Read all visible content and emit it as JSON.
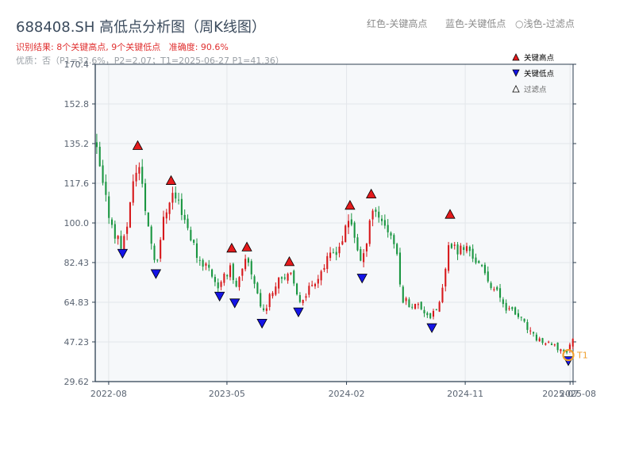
{
  "header": {
    "title": "688408.SH 高低点分析图（周K线图）",
    "result_text": "识别结果: 8个关键高点, 9个关键低点",
    "accuracy_text": "准确度: 90.6%",
    "quality_text": "优质：否（P1=32.6%，P2=2.07；T1=2025-06-27 P1=41.36）",
    "legend_top": {
      "red": "红色-关键高点",
      "blue": "蓝色-关键低点",
      "light": "浅色-过滤点"
    }
  },
  "chart_data": {
    "type": "candlestick",
    "title": "688408.SH 高低点分析图（周K线图）",
    "xlabel": "",
    "ylabel": "",
    "ylim": [
      29.62,
      170.4
    ],
    "xlim": [
      "2022-07-01",
      "2025-07-08"
    ],
    "y_ticks": [
      "29.62",
      "47.23",
      "64.83",
      "82.43",
      "100.0",
      "117.6",
      "135.2",
      "152.8",
      "170.4"
    ],
    "x_ticks": [
      "2022-08",
      "2023-05",
      "2024-02",
      "2024-11",
      "2025-07",
      "2025-08"
    ],
    "grid": true,
    "colors": {
      "up": "#d7191c",
      "down": "#1a9641",
      "key_high": "#e41a1c",
      "key_low": "#1414e6",
      "t1_marker": "#f0a030",
      "plot_bg": "#f6f8fa",
      "axis": "#2c3e50"
    },
    "legend": {
      "position": "top-right",
      "items": [
        {
          "marker": "red-triangle-up",
          "label": "关键高点"
        },
        {
          "marker": "blue-triangle-down",
          "label": "关键低点"
        },
        {
          "marker": "white-triangle-up",
          "label": "过滤点"
        }
      ]
    },
    "key_highs": [
      {
        "date": "2022-10-07",
        "price": 131.5
      },
      {
        "date": "2022-12-23",
        "price": 116.0
      },
      {
        "date": "2023-05-12",
        "price": 86.0
      },
      {
        "date": "2023-06-16",
        "price": 86.5
      },
      {
        "date": "2023-09-22",
        "price": 80.0
      },
      {
        "date": "2024-02-09",
        "price": 105.0
      },
      {
        "date": "2024-03-29",
        "price": 110.0
      },
      {
        "date": "2024-09-27",
        "price": 101.0
      }
    ],
    "key_lows": [
      {
        "date": "2022-09-02",
        "price": 89.0
      },
      {
        "date": "2022-11-18",
        "price": 80.0
      },
      {
        "date": "2023-04-14",
        "price": 70.0
      },
      {
        "date": "2023-05-19",
        "price": 67.0
      },
      {
        "date": "2023-07-21",
        "price": 58.0
      },
      {
        "date": "2023-10-13",
        "price": 63.0
      },
      {
        "date": "2024-03-08",
        "price": 78.0
      },
      {
        "date": "2024-08-16",
        "price": 56.0
      },
      {
        "date": "2025-06-27",
        "price": 41.36
      }
    ],
    "t1_marker": {
      "label": "T1",
      "date": "2025-06-27",
      "price": 41.36
    }
  }
}
